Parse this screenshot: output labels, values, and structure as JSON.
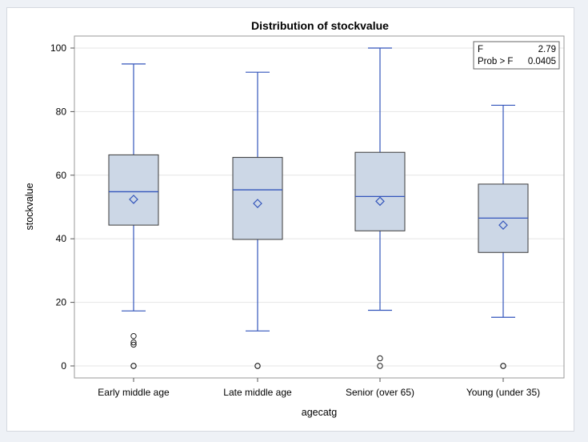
{
  "chart_data": {
    "type": "box",
    "title": "Distribution of stockvalue",
    "xlabel": "agecatg",
    "ylabel": "stockvalue",
    "ylim": [
      -3,
      103
    ],
    "yticks": [
      0,
      20,
      40,
      60,
      80,
      100
    ],
    "grid": true,
    "categories": [
      "Early middle age",
      "Late middle age",
      "Senior (over 65)",
      "Young (under 35)"
    ],
    "boxes": [
      {
        "category": "Early middle age",
        "whisker_low": 17.3,
        "q1": 44.3,
        "median": 54.8,
        "q3": 66.4,
        "whisker_high": 95.0,
        "mean": 52.4,
        "outliers": [
          0,
          0,
          6.7,
          7.4,
          9.4
        ]
      },
      {
        "category": "Late middle age",
        "whisker_low": 11.0,
        "q1": 39.8,
        "median": 55.4,
        "q3": 65.6,
        "whisker_high": 92.4,
        "mean": 51.1,
        "outliers": [
          0,
          0
        ]
      },
      {
        "category": "Senior (over 65)",
        "whisker_low": 17.5,
        "q1": 42.5,
        "median": 53.3,
        "q3": 67.2,
        "whisker_high": 100.0,
        "mean": 51.8,
        "outliers": [
          0,
          2.4
        ]
      },
      {
        "category": "Young (under 35)",
        "whisker_low": 15.3,
        "q1": 35.7,
        "median": 46.5,
        "q3": 57.2,
        "whisker_high": 82.0,
        "mean": 44.3,
        "outliers": [
          0,
          0
        ]
      }
    ],
    "inset": {
      "rows": [
        {
          "label": "F",
          "value": "2.79"
        },
        {
          "label": "Prob > F",
          "value": "0.0405"
        }
      ],
      "placement": "top-right"
    },
    "colors": {
      "box_fill": "#ccd7e6",
      "box_edge": "#3a3a3a",
      "line": "#3355bb",
      "grid": "#e6e6e6"
    }
  }
}
